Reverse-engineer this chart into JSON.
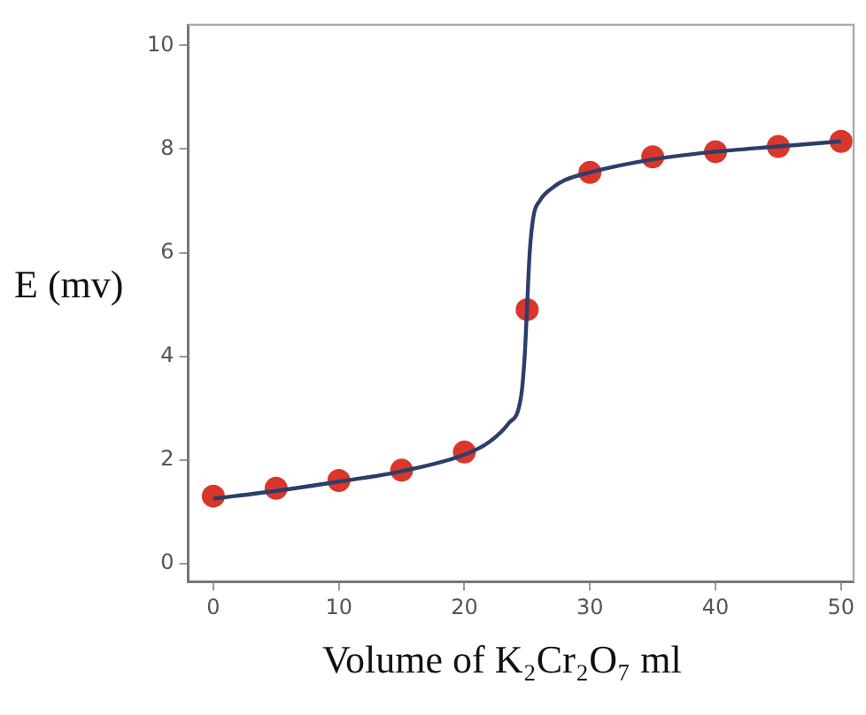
{
  "chart_data": {
    "type": "scatter",
    "xlabel": "Volume of K₂Cr₂O₇  ml",
    "ylabel": "E (mv)",
    "xlim": [
      -2,
      51
    ],
    "ylim": [
      -0.35,
      10.4
    ],
    "xticks": [
      0,
      10,
      20,
      30,
      40,
      50
    ],
    "yticks": [
      0,
      2,
      4,
      6,
      8,
      10
    ],
    "grid": false,
    "legend": false,
    "series": [
      {
        "type": "line",
        "color": "#2c3e6b",
        "marker": "none",
        "x": [
          0,
          5,
          10,
          15,
          20,
          22,
          23.5,
          24.5,
          24.8,
          25,
          25.2,
          25.5,
          26,
          27,
          28,
          30,
          35,
          40,
          45,
          50
        ],
        "values": [
          1.25,
          1.4,
          1.58,
          1.78,
          2.1,
          2.35,
          2.7,
          3.2,
          4,
          5,
          6,
          6.7,
          7,
          7.25,
          7.4,
          7.55,
          7.8,
          7.95,
          8.05,
          8.15
        ]
      },
      {
        "color": "#d9372b",
        "marker": "circle",
        "x": [
          0,
          5,
          10,
          15,
          20,
          25,
          30,
          35,
          40,
          45,
          50
        ],
        "values": [
          1.3,
          1.45,
          1.6,
          1.8,
          2.15,
          4.9,
          7.55,
          7.85,
          7.95,
          8.05,
          8.15
        ]
      }
    ]
  }
}
